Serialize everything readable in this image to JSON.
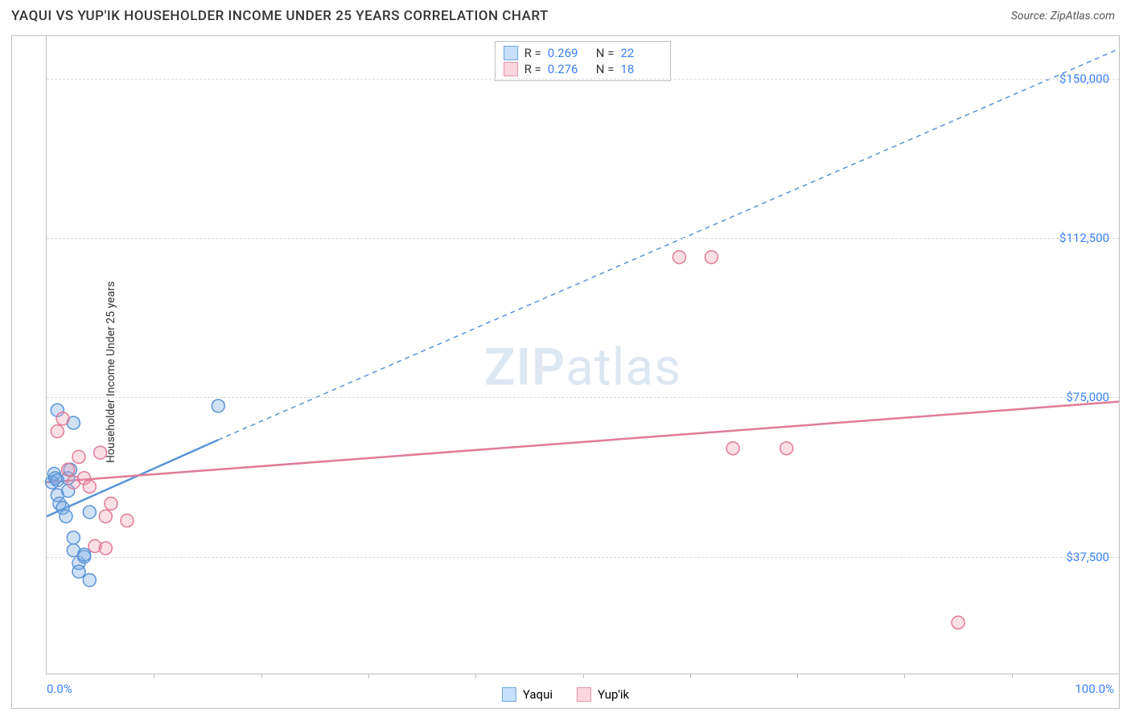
{
  "header": {
    "title": "YAQUI VS YUP'IK HOUSEHOLDER INCOME UNDER 25 YEARS CORRELATION CHART",
    "source": "Source: ZipAtlas.com"
  },
  "chart": {
    "type": "scatter",
    "ylabel": "Householder Income Under 25 years",
    "xlim": [
      0,
      100
    ],
    "ylim": [
      10000,
      160000
    ],
    "ytick_values": [
      37500,
      75000,
      112500,
      150000
    ],
    "ytick_labels": [
      "$37,500",
      "$75,000",
      "$112,500",
      "$150,000"
    ],
    "xtick_positions": [
      10,
      20,
      30,
      40,
      50,
      60,
      70,
      80,
      90
    ],
    "xaxis_left_label": "0.0%",
    "xaxis_right_label": "100.0%",
    "grid_color": "#d9d9d9",
    "axis_color": "#bfbfbf",
    "background_color": "#ffffff",
    "label_color": "#3b82f6",
    "marker_radius": 8,
    "marker_stroke_width": 1.5,
    "series": [
      {
        "name": "Yaqui",
        "color_fill": "rgba(120,170,230,0.35)",
        "color_stroke": "#5a94d6",
        "r": 0.269,
        "n": 22,
        "trend_solid": {
          "x1": 0,
          "y1": 47000,
          "x2": 16,
          "y2": 65000
        },
        "trend_dash": {
          "x1": 16,
          "y1": 65000,
          "x2": 100,
          "y2": 157000
        },
        "points": [
          {
            "x": 0.5,
            "y": 55000
          },
          {
            "x": 0.7,
            "y": 57000
          },
          {
            "x": 0.8,
            "y": 56000
          },
          {
            "x": 1.0,
            "y": 55500
          },
          {
            "x": 1.0,
            "y": 52000
          },
          {
            "x": 1.2,
            "y": 50000
          },
          {
            "x": 1.5,
            "y": 49000
          },
          {
            "x": 1.8,
            "y": 47000
          },
          {
            "x": 2.0,
            "y": 53000
          },
          {
            "x": 2.0,
            "y": 56000
          },
          {
            "x": 2.2,
            "y": 58000
          },
          {
            "x": 2.5,
            "y": 42000
          },
          {
            "x": 2.5,
            "y": 39000
          },
          {
            "x": 3.0,
            "y": 36000
          },
          {
            "x": 3.0,
            "y": 34000
          },
          {
            "x": 3.5,
            "y": 37500
          },
          {
            "x": 3.5,
            "y": 38000
          },
          {
            "x": 4.0,
            "y": 32000
          },
          {
            "x": 4.0,
            "y": 48000
          },
          {
            "x": 1.0,
            "y": 72000
          },
          {
            "x": 2.5,
            "y": 69000
          },
          {
            "x": 16.0,
            "y": 73000
          }
        ]
      },
      {
        "name": "Yup'ik",
        "color_fill": "rgba(240,150,175,0.30)",
        "color_stroke": "#e07b96",
        "r": 0.276,
        "n": 18,
        "trend_solid": {
          "x1": 0,
          "y1": 55000,
          "x2": 100,
          "y2": 74000
        },
        "trend_dash": null,
        "points": [
          {
            "x": 1.0,
            "y": 67000
          },
          {
            "x": 1.5,
            "y": 70000
          },
          {
            "x": 2.0,
            "y": 58000
          },
          {
            "x": 2.5,
            "y": 55000
          },
          {
            "x": 3.0,
            "y": 61000
          },
          {
            "x": 3.5,
            "y": 56000
          },
          {
            "x": 4.0,
            "y": 54000
          },
          {
            "x": 5.0,
            "y": 62000
          },
          {
            "x": 5.5,
            "y": 47000
          },
          {
            "x": 6.0,
            "y": 50000
          },
          {
            "x": 7.5,
            "y": 46000
          },
          {
            "x": 4.5,
            "y": 40000
          },
          {
            "x": 5.5,
            "y": 39500
          },
          {
            "x": 59.0,
            "y": 108000
          },
          {
            "x": 62.0,
            "y": 108000
          },
          {
            "x": 64.0,
            "y": 63000
          },
          {
            "x": 69.0,
            "y": 63000
          },
          {
            "x": 85.0,
            "y": 22000
          }
        ]
      }
    ]
  },
  "stats_legend": {
    "r_label": "R =",
    "n_label": "N ="
  },
  "bottom_legend": {
    "items": [
      {
        "name": "Yaqui",
        "swatch": "blue"
      },
      {
        "name": "Yup'ik",
        "swatch": "pink"
      }
    ]
  },
  "watermark": {
    "zip": "ZIP",
    "atlas": "atlas"
  }
}
